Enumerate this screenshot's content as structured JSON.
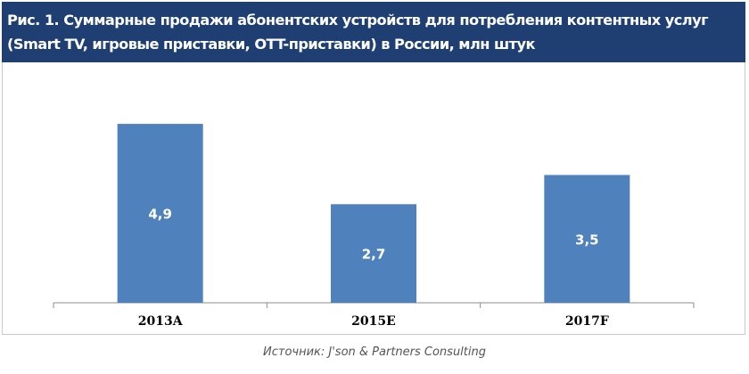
{
  "chart_data": {
    "type": "bar",
    "title": "Рис. 1. Суммарные продажи абонентских устройств для потребления контентных услуг\n(Smart TV, игровые приставки, OTT-приставки) в России, млн штук",
    "categories": [
      "2013A",
      "2015E",
      "2017F"
    ],
    "values": [
      4.9,
      2.7,
      3.5
    ],
    "data_labels": [
      "4,9",
      "2,7",
      "3,5"
    ],
    "xlabel": "",
    "ylabel": "",
    "ylim": [
      0,
      6
    ],
    "grid": false,
    "legend": "none",
    "bar_color": "#4f81bd"
  },
  "header": {
    "background": "#1f3f73"
  },
  "footer": {
    "source": "Источник: J'son & Partners Consulting"
  }
}
